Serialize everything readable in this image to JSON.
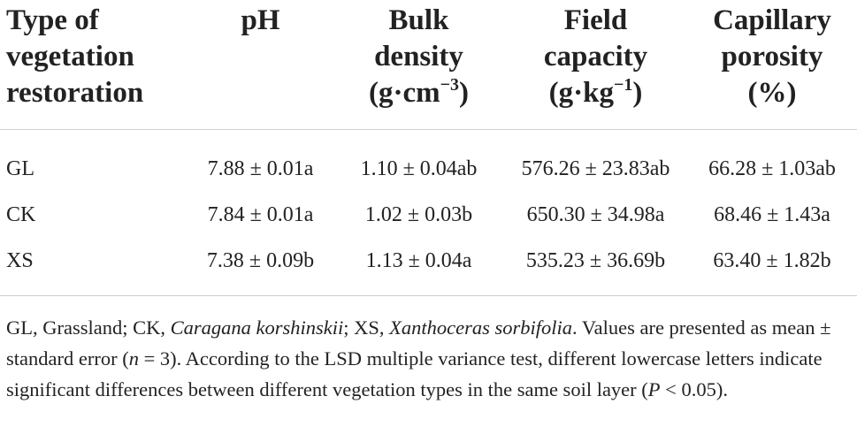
{
  "table": {
    "headers": [
      {
        "lines": [
          "Type of",
          "vegetation",
          "restoration"
        ]
      },
      {
        "lines": [
          "pH"
        ]
      },
      {
        "lines": [
          "Bulk",
          "density",
          "(g·cm"
        ],
        "sup": "−3",
        "after": ")"
      },
      {
        "lines": [
          "Field",
          "capacity",
          "(g·kg"
        ],
        "sup": "−1",
        "after": ")"
      },
      {
        "lines": [
          "Capillary",
          "porosity",
          "(%)"
        ]
      }
    ],
    "rows": [
      {
        "type": "GL",
        "ph": "7.88 ± 0.01a",
        "bulk_density": "1.10 ± 0.04ab",
        "field_capacity": "576.26 ± 23.83ab",
        "capillary_porosity": "66.28 ± 1.03ab"
      },
      {
        "type": "CK",
        "ph": "7.84 ± 0.01a",
        "bulk_density": "1.02 ± 0.03b",
        "field_capacity": "650.30 ± 34.98a",
        "capillary_porosity": "68.46 ± 1.43a"
      },
      {
        "type": "XS",
        "ph": "7.38 ± 0.09b",
        "bulk_density": "1.13 ± 0.04a",
        "field_capacity": "535.23 ± 36.69b",
        "capillary_porosity": "63.40 ± 1.82b"
      }
    ]
  },
  "footnote": {
    "gl": "GL, Grassland; CK, ",
    "ck_species": "Caragana korshinskii",
    "xs_prefix": "; XS, ",
    "xs_species": "Xanthoceras sorbifolia",
    "text1": ". Values are presented as mean ± standard error (",
    "n_var": "n",
    "text2": " = 3). According to the LSD multiple variance test, different lowercase letters indicate significant differences between different vegetation types in the same soil layer (",
    "p_var": "P",
    "text3": " < 0.05)."
  }
}
